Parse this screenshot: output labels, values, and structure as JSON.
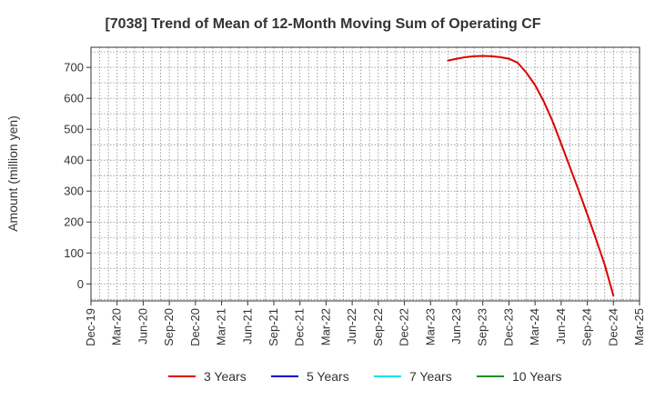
{
  "chart_data": {
    "type": "line",
    "title": "[7038]  Trend of Mean of 12-Month Moving Sum of Operating CF",
    "ylabel": "Amount (million yen)",
    "xlabel": "",
    "ylim": [
      -55,
      765
    ],
    "yticks": [
      0,
      100,
      200,
      300,
      400,
      500,
      600,
      700
    ],
    "categories": [
      "Dec-19",
      "Mar-20",
      "Jun-20",
      "Sep-20",
      "Dec-20",
      "Mar-21",
      "Jun-21",
      "Sep-21",
      "Dec-21",
      "Mar-22",
      "Jun-22",
      "Sep-22",
      "Dec-22",
      "Mar-23",
      "Jun-23",
      "Sep-23",
      "Dec-23",
      "Mar-24",
      "Jun-24",
      "Sep-24",
      "Dec-24",
      "Mar-25"
    ],
    "grid": true,
    "legend_position": "bottom",
    "series": [
      {
        "name": "3 Years",
        "color": "#dd0000",
        "x": [
          "May-23",
          "Jun-23",
          "Jul-23",
          "Aug-23",
          "Sep-23",
          "Oct-23",
          "Nov-23",
          "Dec-23",
          "Jan-24",
          "Feb-24",
          "Mar-24",
          "Apr-24",
          "May-24",
          "Jun-24",
          "Jul-24",
          "Aug-24",
          "Sep-24",
          "Oct-24",
          "Nov-24",
          "Dec-24"
        ],
        "values": [
          722,
          728,
          733,
          736,
          737,
          736,
          733,
          728,
          715,
          683,
          643,
          590,
          527,
          453,
          378,
          303,
          225,
          145,
          62,
          -38
        ]
      },
      {
        "name": "5 Years",
        "color": "#0000cc",
        "x": [],
        "values": []
      },
      {
        "name": "7 Years",
        "color": "#00e5ee",
        "x": [],
        "values": []
      },
      {
        "name": "10 Years",
        "color": "#228b22",
        "x": [],
        "values": []
      }
    ]
  }
}
